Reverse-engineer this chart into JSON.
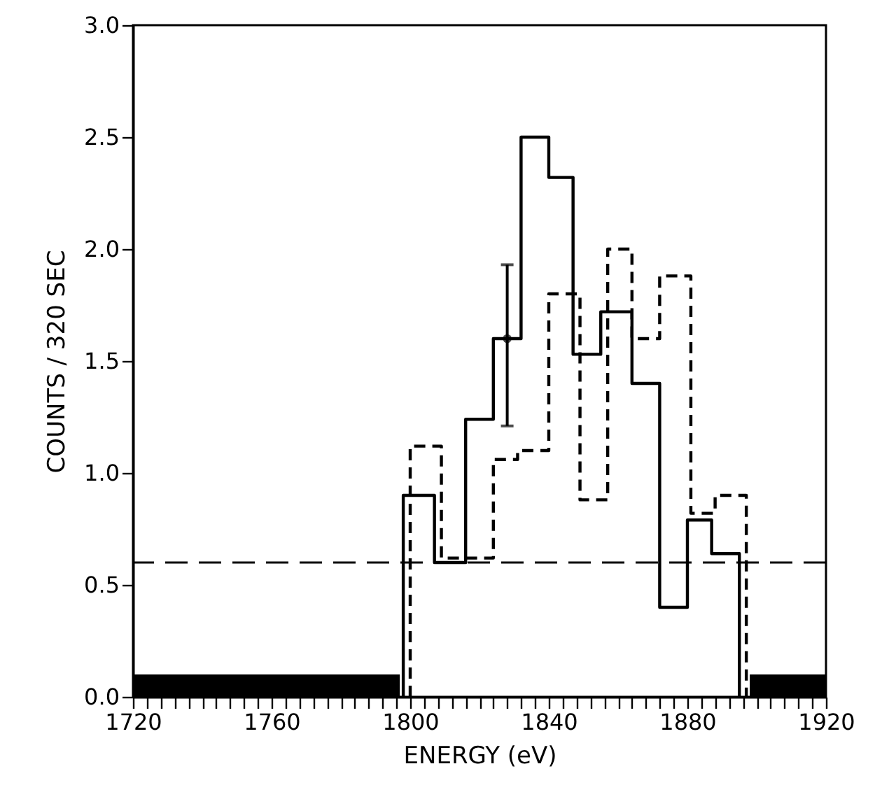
{
  "chart_data": {
    "type": "step",
    "xlabel": "ENERGY (eV)",
    "ylabel": "COUNTS / 320 SEC",
    "xlim": [
      1720,
      1920
    ],
    "xticks": [
      1720,
      {
        "value": 1724,
        "label": null
      },
      {
        "value": 1728,
        "label": null
      },
      {
        "value": 1732,
        "label": null
      },
      {
        "value": 1736,
        "label": null
      },
      {
        "value": 1740,
        "label": null
      },
      {
        "value": 1744,
        "label": null
      },
      {
        "value": 1748,
        "label": null
      },
      {
        "value": 1752,
        "label": null
      },
      {
        "value": 1756,
        "label": null
      },
      1760,
      {
        "value": 1764,
        "label": null
      },
      {
        "value": 1768,
        "label": null
      },
      {
        "value": 1772,
        "label": null
      },
      {
        "value": 1776,
        "label": null
      },
      {
        "value": 1780,
        "label": null
      },
      {
        "value": 1784,
        "label": null
      },
      {
        "value": 1788,
        "label": null
      },
      {
        "value": 1792,
        "label": null
      },
      {
        "value": 1796,
        "label": null
      },
      1800,
      {
        "value": 1804,
        "label": null
      },
      {
        "value": 1808,
        "label": null
      },
      {
        "value": 1812,
        "label": null
      },
      {
        "value": 1816,
        "label": null
      },
      {
        "value": 1820,
        "label": null
      },
      {
        "value": 1824,
        "label": null
      },
      {
        "value": 1828,
        "label": null
      },
      {
        "value": 1832,
        "label": null
      },
      {
        "value": 1836,
        "label": null
      },
      1840,
      {
        "value": 1844,
        "label": null
      },
      {
        "value": 1848,
        "label": null
      },
      {
        "value": 1852,
        "label": null
      },
      {
        "value": 1856,
        "label": null
      },
      {
        "value": 1860,
        "label": null
      },
      {
        "value": 1864,
        "label": null
      },
      {
        "value": 1868,
        "label": null
      },
      {
        "value": 1872,
        "label": null
      },
      {
        "value": 1876,
        "label": null
      },
      1880,
      {
        "value": 1884,
        "label": null
      },
      {
        "value": 1888,
        "label": null
      },
      {
        "value": 1892,
        "label": null
      },
      {
        "value": 1896,
        "label": null
      },
      {
        "value": 1900,
        "label": null
      },
      {
        "value": 1904,
        "label": null
      },
      {
        "value": 1908,
        "label": null
      },
      {
        "value": 1912,
        "label": null
      },
      {
        "value": 1916,
        "label": null
      },
      1920
    ],
    "ylim": [
      0,
      3
    ],
    "yticks": [
      {
        "value": 0,
        "label": "0.0"
      },
      {
        "value": 0.5,
        "label": "0.5"
      },
      {
        "value": 1,
        "label": "1.0"
      },
      {
        "value": 1.5,
        "label": "1.5"
      },
      {
        "value": 2,
        "label": "2.0"
      },
      {
        "value": 2.5,
        "label": "2.5"
      },
      {
        "value": 3,
        "label": "3.0"
      }
    ],
    "ref_lines": [
      {
        "axis": "y",
        "value": 0.6,
        "line_style": "dashed",
        "color": "#000000"
      }
    ],
    "series": [
      {
        "type": "histogram",
        "color": "#000000",
        "bins": [
          1720,
          1797,
          1898,
          1920
        ],
        "values": [
          0.1,
          null,
          0.1
        ]
      },
      {
        "color": "#000000",
        "line_style": "solid",
        "x": [
          1798,
          1798,
          1807,
          1816,
          1824,
          1832,
          1840,
          1847,
          1855,
          1864,
          1872,
          1880,
          1887,
          1895
        ],
        "values": [
          0,
          0.9,
          0.6,
          1.24,
          1.6,
          2.5,
          2.32,
          1.53,
          1.72,
          1.4,
          0.4,
          0.79,
          0.64,
          0
        ]
      },
      {
        "color": "#000000",
        "line_style": "dashed",
        "x": [
          1800,
          1800,
          1809,
          1824,
          1831,
          1840,
          1849,
          1857,
          1864,
          1872,
          1881,
          1888,
          1897
        ],
        "values": [
          0,
          1.12,
          0.62,
          1.06,
          1.1,
          1.8,
          0.88,
          2.0,
          1.6,
          1.88,
          0.82,
          0.9,
          0
        ]
      },
      {
        "type": "scatter",
        "color": "#000000",
        "marker": "circle",
        "x": [
          1828
        ],
        "values": [
          1.6
        ],
        "errors": [
          [
            1.21,
            1.93
          ]
        ]
      }
    ]
  }
}
